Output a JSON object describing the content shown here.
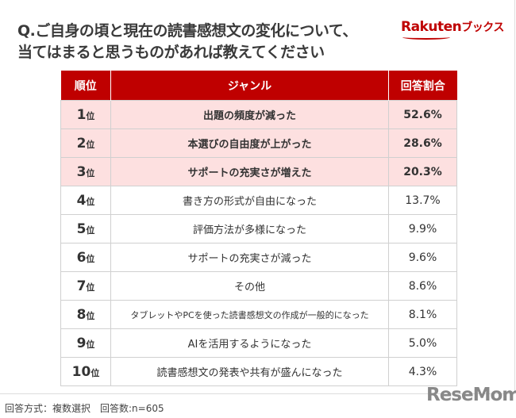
{
  "title_line1": "Q.ご自身の頃と現在の読書感想文の変化について、",
  "title_line2": "当てはまると思うものがあれば教えてください",
  "logo": {
    "main": "Rakuten",
    "sub": "ブックス"
  },
  "footer": "回答方式：複数選択　回答数:n=605",
  "watermark": "ReseMom",
  "chart_data": {
    "type": "table",
    "columns": [
      "順位",
      "ジャンル",
      "回答割合"
    ],
    "rows": [
      {
        "rank": "1",
        "suffix": "位",
        "genre": "出題の頻度が減った",
        "pct": "52.6%"
      },
      {
        "rank": "2",
        "suffix": "位",
        "genre": "本選びの自由度が上がった",
        "pct": "28.6%"
      },
      {
        "rank": "3",
        "suffix": "位",
        "genre": "サポートの充実さが増えた",
        "pct": "20.3%"
      },
      {
        "rank": "4",
        "suffix": "位",
        "genre": "書き方の形式が自由になった",
        "pct": "13.7%"
      },
      {
        "rank": "5",
        "suffix": "位",
        "genre": "評価方法が多様になった",
        "pct": "9.9%"
      },
      {
        "rank": "6",
        "suffix": "位",
        "genre": "サポートの充実さが減った",
        "pct": "9.6%"
      },
      {
        "rank": "7",
        "suffix": "位",
        "genre": "その他",
        "pct": "8.6%"
      },
      {
        "rank": "8",
        "suffix": "位",
        "genre": "タブレットやPCを使った読書感想文の作成が一般的になった",
        "pct": "8.1%"
      },
      {
        "rank": "9",
        "suffix": "位",
        "genre": "AIを活用するようになった",
        "pct": "5.0%"
      },
      {
        "rank": "10",
        "suffix": "位",
        "genre": "読書感想文の発表や共有が盛んになった",
        "pct": "4.3%"
      }
    ],
    "colors": {
      "header": "#bf0000",
      "highlight": "#fde0e0"
    }
  }
}
